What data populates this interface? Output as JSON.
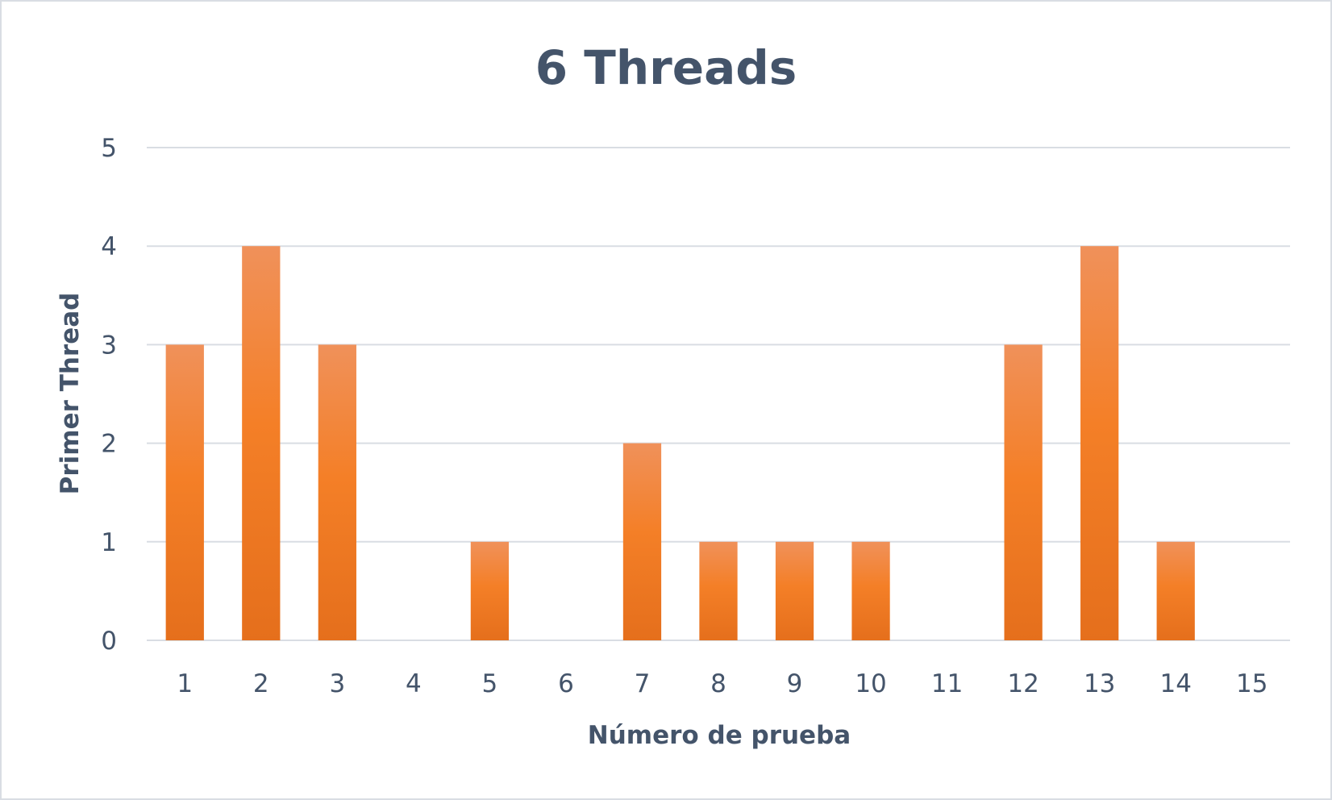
{
  "chart_data": {
    "type": "bar",
    "title": "6 Threads",
    "xlabel": "Número de prueba",
    "ylabel": "Primer Thread",
    "categories": [
      "1",
      "2",
      "3",
      "4",
      "5",
      "6",
      "7",
      "8",
      "9",
      "10",
      "11",
      "12",
      "13",
      "14",
      "15"
    ],
    "values": [
      3,
      4,
      3,
      0,
      1,
      0,
      2,
      1,
      1,
      1,
      0,
      3,
      4,
      1,
      0
    ],
    "ylim": [
      0,
      5
    ],
    "yticks": [
      "0",
      "1",
      "2",
      "3",
      "4",
      "5"
    ],
    "grid": true,
    "legend": "none",
    "colors": {
      "bar_top": "#f0915a",
      "bar_mid": "#f47f27",
      "bar_bottom": "#e56f1c",
      "text": "#44546a",
      "grid": "#d9dde3"
    }
  }
}
